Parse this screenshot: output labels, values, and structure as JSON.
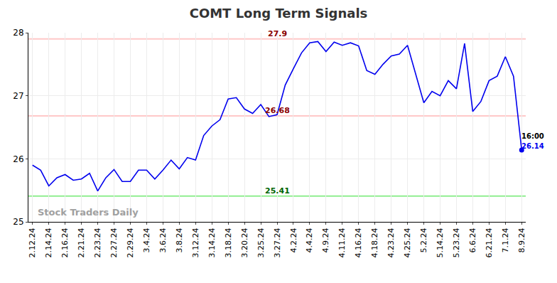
{
  "chart_data": {
    "type": "line",
    "title": "COMT Long Term Signals",
    "categories": [
      "2.12.24",
      null,
      "2.14.24",
      null,
      "2.16.24",
      null,
      "2.21.24",
      null,
      "2.23.24",
      null,
      "2.27.24",
      null,
      "2.29.24",
      null,
      "3.4.24",
      null,
      "3.6.24",
      null,
      "3.8.24",
      null,
      "3.12.24",
      null,
      "3.14.24",
      null,
      "3.18.24",
      null,
      "3.20.24",
      null,
      "3.25.24",
      null,
      "3.27.24",
      null,
      "4.2.24",
      null,
      "4.4.24",
      null,
      "4.9.24",
      null,
      "4.11.24",
      null,
      "4.16.24",
      null,
      "4.18.24",
      null,
      "4.23.24",
      null,
      "4.25.24",
      null,
      "5.2.24",
      null,
      "5.14.24",
      null,
      "5.23.24",
      null,
      "6.6.24",
      null,
      "6.21.24",
      null,
      "7.1.24",
      null,
      "8.9.24"
    ],
    "values": [
      25.9,
      25.82,
      25.57,
      25.7,
      25.75,
      25.66,
      25.68,
      25.77,
      25.49,
      25.7,
      25.83,
      25.64,
      25.64,
      25.82,
      25.82,
      25.68,
      25.82,
      25.98,
      25.84,
      26.02,
      25.98,
      26.37,
      26.52,
      26.62,
      26.95,
      26.97,
      26.79,
      26.72,
      26.86,
      26.67,
      26.7,
      27.17,
      27.43,
      27.68,
      27.84,
      27.86,
      27.7,
      27.85,
      27.8,
      27.84,
      27.79,
      27.4,
      27.34,
      27.5,
      27.63,
      27.66,
      27.8,
      27.33,
      26.89,
      27.07,
      27.0,
      27.24,
      27.11,
      27.83,
      26.75,
      26.91,
      27.24,
      27.31,
      27.62,
      27.31,
      26.14
    ],
    "color": "#0000ee",
    "ylim": [
      25,
      28
    ],
    "yticks": [
      25,
      26,
      27,
      28
    ],
    "grid": true,
    "levels": [
      {
        "value": 27.9,
        "label": "27.9",
        "color": "#ffc8c8"
      },
      {
        "value": 26.68,
        "label": "26.68",
        "color": "#ffc8c8"
      },
      {
        "value": 25.41,
        "label": "25.41",
        "color": "#90ee90"
      }
    ],
    "annotations": [
      {
        "text": "16:00"
      },
      {
        "text": "26.14"
      }
    ],
    "watermark": "Stock Traders Daily"
  }
}
